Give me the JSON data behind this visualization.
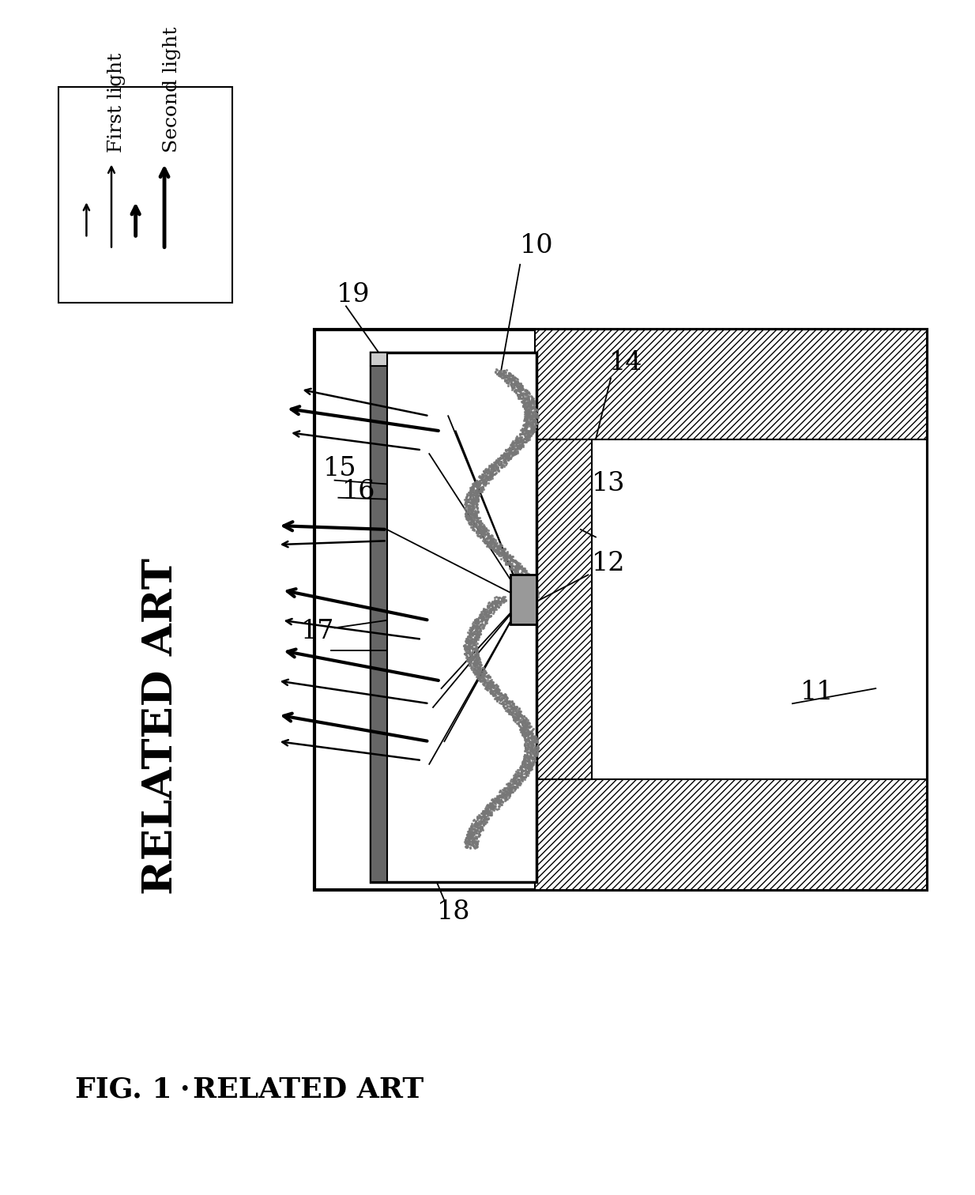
{
  "bg_color": "#ffffff",
  "title": "FIG. 1",
  "subtitle": "RELATED ART",
  "fig_width": 12.34,
  "fig_height": 15.12,
  "dpi": 100
}
